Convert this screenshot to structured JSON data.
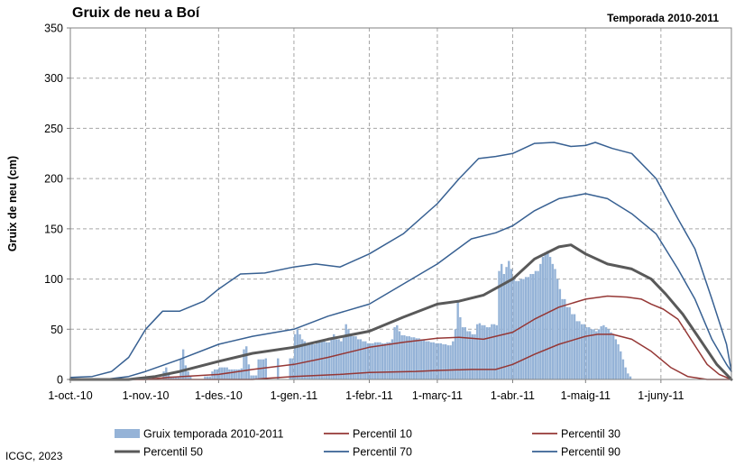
{
  "header": {
    "title": "Gruix de neu a Boí",
    "season": "Temporada 2010-2011"
  },
  "footer": {
    "credit": "ICGC, 2023"
  },
  "colors": {
    "bars": "#95b3d7",
    "p10": "#953735",
    "p30": "#953735",
    "p50": "#595959",
    "p70": "#376092",
    "p90": "#376092",
    "grid": "#a6a6a6"
  },
  "chart_data": {
    "type": "bar",
    "title": "Gruix de neu a Boí",
    "subtitle": "Temporada 2010-2011",
    "xlabel": "",
    "ylabel": "Gruix de neu (cm)",
    "ylim": [
      0,
      350
    ],
    "xlim": [
      "2010-10-01",
      "2011-06-30"
    ],
    "y_ticks": [
      0,
      50,
      100,
      150,
      200,
      250,
      300,
      350
    ],
    "x_ticks": [
      {
        "date": "2010-10-01",
        "label": "1-oct.-10"
      },
      {
        "date": "2010-11-01",
        "label": "1-nov.-10"
      },
      {
        "date": "2010-12-01",
        "label": "1-des.-10"
      },
      {
        "date": "2011-01-01",
        "label": "1-gen.-11"
      },
      {
        "date": "2011-02-01",
        "label": "1-febr.-11"
      },
      {
        "date": "2011-03-01",
        "label": "1-març-11"
      },
      {
        "date": "2011-04-01",
        "label": "1-abr.-11"
      },
      {
        "date": "2011-05-01",
        "label": "1-maig-11"
      },
      {
        "date": "2011-06-01",
        "label": "1-juny-11"
      }
    ],
    "grid": true,
    "legend_position": "bottom",
    "bars": {
      "name": "Gruix temporada 2010-2011",
      "points": [
        [
          "2010-11-08",
          8
        ],
        [
          "2010-11-09",
          12
        ],
        [
          "2010-11-10",
          6
        ],
        [
          "2010-11-11",
          3
        ],
        [
          "2010-11-15",
          20
        ],
        [
          "2010-11-16",
          30
        ],
        [
          "2010-11-17",
          14
        ],
        [
          "2010-11-18",
          8
        ],
        [
          "2010-11-19",
          4
        ],
        [
          "2010-11-25",
          3
        ],
        [
          "2010-11-28",
          8
        ],
        [
          "2010-11-29",
          10
        ],
        [
          "2010-12-01",
          12
        ],
        [
          "2010-12-05",
          10
        ],
        [
          "2010-12-09",
          10
        ],
        [
          "2010-12-10",
          11
        ],
        [
          "2010-12-11",
          30
        ],
        [
          "2010-12-12",
          33
        ],
        [
          "2010-12-13",
          15
        ],
        [
          "2010-12-14",
          4
        ],
        [
          "2010-12-17",
          20
        ],
        [
          "2010-12-20",
          21
        ],
        [
          "2010-12-25",
          21
        ],
        [
          "2010-12-30",
          21
        ],
        [
          "2011-01-01",
          45
        ],
        [
          "2011-01-02",
          50
        ],
        [
          "2011-01-03",
          45
        ],
        [
          "2011-01-04",
          40
        ],
        [
          "2011-01-05",
          38
        ],
        [
          "2011-01-06",
          36
        ],
        [
          "2011-01-08",
          35
        ],
        [
          "2011-01-10",
          37
        ],
        [
          "2011-01-12",
          38
        ],
        [
          "2011-01-14",
          37
        ],
        [
          "2011-01-16",
          40
        ],
        [
          "2011-01-17",
          45
        ],
        [
          "2011-01-18",
          40
        ],
        [
          "2011-01-20",
          38
        ],
        [
          "2011-01-21",
          42
        ],
        [
          "2011-01-22",
          55
        ],
        [
          "2011-01-23",
          50
        ],
        [
          "2011-01-24",
          45
        ],
        [
          "2011-01-25",
          43
        ],
        [
          "2011-01-27",
          40
        ],
        [
          "2011-01-29",
          38
        ],
        [
          "2011-01-31",
          36
        ],
        [
          "2011-02-03",
          37
        ],
        [
          "2011-02-06",
          36
        ],
        [
          "2011-02-08",
          37
        ],
        [
          "2011-02-10",
          40
        ],
        [
          "2011-02-11",
          52
        ],
        [
          "2011-02-12",
          54
        ],
        [
          "2011-02-13",
          48
        ],
        [
          "2011-02-14",
          44
        ],
        [
          "2011-02-16",
          43
        ],
        [
          "2011-02-18",
          42
        ],
        [
          "2011-02-20",
          41
        ],
        [
          "2011-02-22",
          40
        ],
        [
          "2011-02-24",
          38
        ],
        [
          "2011-02-26",
          37
        ],
        [
          "2011-02-28",
          36
        ],
        [
          "2011-03-02",
          36
        ],
        [
          "2011-03-03",
          35
        ],
        [
          "2011-03-05",
          34
        ],
        [
          "2011-03-07",
          38
        ],
        [
          "2011-03-08",
          50
        ],
        [
          "2011-03-09",
          78
        ],
        [
          "2011-03-10",
          62
        ],
        [
          "2011-03-11",
          52
        ],
        [
          "2011-03-13",
          48
        ],
        [
          "2011-03-15",
          45
        ],
        [
          "2011-03-17",
          55
        ],
        [
          "2011-03-18",
          56
        ],
        [
          "2011-03-19",
          54
        ],
        [
          "2011-03-21",
          52
        ],
        [
          "2011-03-23",
          55
        ],
        [
          "2011-03-25",
          54
        ],
        [
          "2011-03-26",
          108
        ],
        [
          "2011-03-27",
          115
        ],
        [
          "2011-03-28",
          105
        ],
        [
          "2011-03-29",
          112
        ],
        [
          "2011-03-30",
          118
        ],
        [
          "2011-03-31",
          110
        ],
        [
          "2011-04-01",
          100
        ],
        [
          "2011-04-02",
          98
        ],
        [
          "2011-04-04",
          100
        ],
        [
          "2011-04-06",
          102
        ],
        [
          "2011-04-08",
          105
        ],
        [
          "2011-04-10",
          108
        ],
        [
          "2011-04-12",
          115
        ],
        [
          "2011-04-13",
          122
        ],
        [
          "2011-04-14",
          125
        ],
        [
          "2011-04-15",
          128
        ],
        [
          "2011-04-16",
          122
        ],
        [
          "2011-04-17",
          115
        ],
        [
          "2011-04-18",
          110
        ],
        [
          "2011-04-19",
          100
        ],
        [
          "2011-04-20",
          90
        ],
        [
          "2011-04-21",
          80
        ],
        [
          "2011-04-23",
          72
        ],
        [
          "2011-04-25",
          65
        ],
        [
          "2011-04-27",
          58
        ],
        [
          "2011-04-29",
          55
        ],
        [
          "2011-05-01",
          52
        ],
        [
          "2011-05-03",
          50
        ],
        [
          "2011-05-05",
          48
        ],
        [
          "2011-05-06",
          50
        ],
        [
          "2011-05-07",
          53
        ],
        [
          "2011-05-08",
          54
        ],
        [
          "2011-05-09",
          52
        ],
        [
          "2011-05-10",
          50
        ],
        [
          "2011-05-11",
          47
        ],
        [
          "2011-05-12",
          45
        ],
        [
          "2011-05-13",
          40
        ],
        [
          "2011-05-14",
          35
        ],
        [
          "2011-05-15",
          28
        ],
        [
          "2011-05-16",
          20
        ],
        [
          "2011-05-17",
          12
        ],
        [
          "2011-05-18",
          6
        ],
        [
          "2011-05-19",
          3
        ]
      ]
    },
    "series": [
      {
        "name": "Percentil 10",
        "color": "#953735",
        "width": 1.5,
        "points": [
          [
            "2010-10-01",
            0
          ],
          [
            "2010-12-15",
            0
          ],
          [
            "2010-12-20",
            1
          ],
          [
            "2011-01-01",
            3
          ],
          [
            "2011-01-20",
            5
          ],
          [
            "2011-02-01",
            7
          ],
          [
            "2011-02-20",
            8
          ],
          [
            "2011-03-01",
            9
          ],
          [
            "2011-03-15",
            10
          ],
          [
            "2011-03-25",
            10
          ],
          [
            "2011-04-01",
            15
          ],
          [
            "2011-04-10",
            25
          ],
          [
            "2011-04-20",
            35
          ],
          [
            "2011-05-01",
            43
          ],
          [
            "2011-05-06",
            45
          ],
          [
            "2011-05-12",
            45
          ],
          [
            "2011-05-20",
            40
          ],
          [
            "2011-05-28",
            28
          ],
          [
            "2011-06-05",
            12
          ],
          [
            "2011-06-12",
            3
          ],
          [
            "2011-06-20",
            0
          ],
          [
            "2011-06-30",
            0
          ]
        ]
      },
      {
        "name": "Percentil 30",
        "color": "#953735",
        "width": 1.5,
        "points": [
          [
            "2010-10-01",
            0
          ],
          [
            "2010-11-01",
            0
          ],
          [
            "2010-11-10",
            2
          ],
          [
            "2010-12-01",
            5
          ],
          [
            "2010-12-15",
            10
          ],
          [
            "2011-01-01",
            15
          ],
          [
            "2011-01-15",
            22
          ],
          [
            "2011-02-01",
            32
          ],
          [
            "2011-02-15",
            37
          ],
          [
            "2011-03-01",
            41
          ],
          [
            "2011-03-10",
            42
          ],
          [
            "2011-03-20",
            40
          ],
          [
            "2011-04-01",
            47
          ],
          [
            "2011-04-10",
            60
          ],
          [
            "2011-04-20",
            72
          ],
          [
            "2011-05-01",
            80
          ],
          [
            "2011-05-10",
            83
          ],
          [
            "2011-05-18",
            82
          ],
          [
            "2011-05-24",
            80
          ],
          [
            "2011-05-28",
            75
          ],
          [
            "2011-06-02",
            70
          ],
          [
            "2011-06-08",
            60
          ],
          [
            "2011-06-12",
            45
          ],
          [
            "2011-06-16",
            30
          ],
          [
            "2011-06-20",
            15
          ],
          [
            "2011-06-25",
            5
          ],
          [
            "2011-06-30",
            0
          ]
        ]
      },
      {
        "name": "Percentil 50",
        "color": "#595959",
        "width": 3,
        "points": [
          [
            "2010-10-01",
            0
          ],
          [
            "2010-10-25",
            0
          ],
          [
            "2010-11-05",
            3
          ],
          [
            "2010-11-15",
            8
          ],
          [
            "2010-12-01",
            18
          ],
          [
            "2010-12-15",
            26
          ],
          [
            "2011-01-01",
            32
          ],
          [
            "2011-01-15",
            40
          ],
          [
            "2011-02-01",
            48
          ],
          [
            "2011-02-15",
            62
          ],
          [
            "2011-03-01",
            75
          ],
          [
            "2011-03-10",
            78
          ],
          [
            "2011-03-20",
            84
          ],
          [
            "2011-04-01",
            100
          ],
          [
            "2011-04-10",
            120
          ],
          [
            "2011-04-20",
            132
          ],
          [
            "2011-04-25",
            134
          ],
          [
            "2011-05-01",
            125
          ],
          [
            "2011-05-10",
            115
          ],
          [
            "2011-05-20",
            110
          ],
          [
            "2011-05-28",
            100
          ],
          [
            "2011-06-03",
            85
          ],
          [
            "2011-06-10",
            65
          ],
          [
            "2011-06-17",
            40
          ],
          [
            "2011-06-24",
            15
          ],
          [
            "2011-06-30",
            0
          ]
        ]
      },
      {
        "name": "Percentil 70",
        "color": "#376092",
        "width": 1.5,
        "points": [
          [
            "2010-10-01",
            0
          ],
          [
            "2010-10-15",
            0
          ],
          [
            "2010-10-25",
            3
          ],
          [
            "2010-11-01",
            8
          ],
          [
            "2010-11-15",
            20
          ],
          [
            "2010-12-01",
            35
          ],
          [
            "2010-12-15",
            43
          ],
          [
            "2011-01-01",
            50
          ],
          [
            "2011-01-15",
            63
          ],
          [
            "2011-02-01",
            75
          ],
          [
            "2011-02-15",
            95
          ],
          [
            "2011-03-01",
            115
          ],
          [
            "2011-03-15",
            140
          ],
          [
            "2011-03-25",
            146
          ],
          [
            "2011-04-01",
            153
          ],
          [
            "2011-04-10",
            168
          ],
          [
            "2011-04-20",
            180
          ],
          [
            "2011-05-01",
            185
          ],
          [
            "2011-05-10",
            180
          ],
          [
            "2011-05-20",
            165
          ],
          [
            "2011-05-30",
            145
          ],
          [
            "2011-06-08",
            110
          ],
          [
            "2011-06-15",
            80
          ],
          [
            "2011-06-22",
            40
          ],
          [
            "2011-06-28",
            15
          ],
          [
            "2011-06-30",
            8
          ]
        ]
      },
      {
        "name": "Percentil 90",
        "color": "#376092",
        "width": 1.5,
        "points": [
          [
            "2010-10-01",
            2
          ],
          [
            "2010-10-10",
            3
          ],
          [
            "2010-10-18",
            8
          ],
          [
            "2010-10-25",
            22
          ],
          [
            "2010-11-01",
            50
          ],
          [
            "2010-11-08",
            68
          ],
          [
            "2010-11-15",
            68
          ],
          [
            "2010-11-25",
            78
          ],
          [
            "2010-12-01",
            90
          ],
          [
            "2010-12-10",
            105
          ],
          [
            "2010-12-20",
            106
          ],
          [
            "2011-01-01",
            112
          ],
          [
            "2011-01-10",
            115
          ],
          [
            "2011-01-20",
            112
          ],
          [
            "2011-02-01",
            125
          ],
          [
            "2011-02-15",
            145
          ],
          [
            "2011-03-01",
            175
          ],
          [
            "2011-03-10",
            200
          ],
          [
            "2011-03-18",
            220
          ],
          [
            "2011-03-25",
            222
          ],
          [
            "2011-04-01",
            225
          ],
          [
            "2011-04-10",
            235
          ],
          [
            "2011-04-18",
            236
          ],
          [
            "2011-04-25",
            232
          ],
          [
            "2011-05-01",
            233
          ],
          [
            "2011-05-05",
            236
          ],
          [
            "2011-05-12",
            230
          ],
          [
            "2011-05-20",
            225
          ],
          [
            "2011-05-30",
            200
          ],
          [
            "2011-06-08",
            160
          ],
          [
            "2011-06-15",
            130
          ],
          [
            "2011-06-22",
            80
          ],
          [
            "2011-06-28",
            35
          ],
          [
            "2011-06-30",
            8
          ]
        ]
      }
    ],
    "legend": [
      {
        "key": "bars",
        "label": "Gruix temporada 2010-2011",
        "kind": "bar"
      },
      {
        "key": "p10",
        "label": "Percentil 10",
        "kind": "line"
      },
      {
        "key": "p30",
        "label": "Percentil 30",
        "kind": "line"
      },
      {
        "key": "p50",
        "label": "Percentil 50",
        "kind": "line"
      },
      {
        "key": "p70",
        "label": "Percentil 70",
        "kind": "line"
      },
      {
        "key": "p90",
        "label": "Percentil 90",
        "kind": "line"
      }
    ]
  }
}
